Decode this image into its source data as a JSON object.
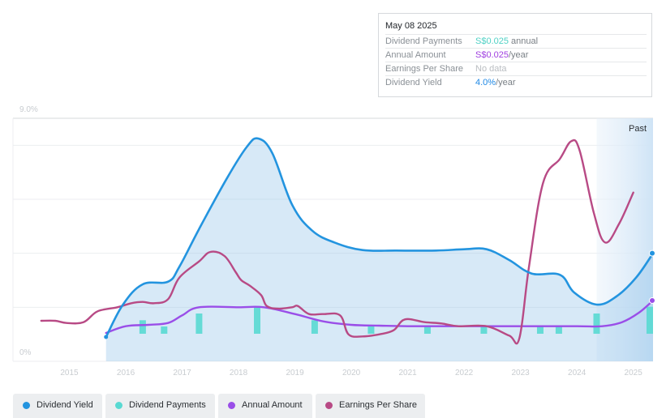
{
  "tooltip": {
    "date": "May 08 2025",
    "rows": [
      {
        "label": "Dividend Payments",
        "value": "S$0.025",
        "unit": "annual",
        "color": "#4fd1c5"
      },
      {
        "label": "Annual Amount",
        "value": "S$0.025",
        "unit": "/year",
        "color": "#a040e0"
      },
      {
        "label": "Earnings Per Share",
        "value": "No data",
        "unit": "",
        "color": "#b9bdc1"
      },
      {
        "label": "Dividend Yield",
        "value": "4.0%",
        "unit": "/year",
        "color": "#1e88e5"
      }
    ]
  },
  "legend": [
    {
      "label": "Dividend Yield",
      "color": "#2394df"
    },
    {
      "label": "Dividend Payments",
      "color": "#59d9d2"
    },
    {
      "label": "Annual Amount",
      "color": "#9a4ee8"
    },
    {
      "label": "Earnings Per Share",
      "color": "#b84a85"
    }
  ],
  "chart_data": {
    "type": "line",
    "y_axis": {
      "labels": [
        "9.0%",
        "0%"
      ],
      "min": 0,
      "max": 9.0,
      "unit": "%"
    },
    "x_ticks": [
      "2015",
      "2016",
      "2017",
      "2018",
      "2019",
      "2020",
      "2021",
      "2022",
      "2023",
      "2024",
      "2025"
    ],
    "x_range": [
      2014.0,
      2025.35
    ],
    "past_label": "Past",
    "past_start": 2024.35,
    "series": [
      {
        "name": "Dividend Yield",
        "color": "#2394df",
        "fill": true,
        "points": [
          [
            2015.65,
            0.9
          ],
          [
            2015.95,
            2.1
          ],
          [
            2016.3,
            2.85
          ],
          [
            2016.75,
            2.95
          ],
          [
            2016.95,
            3.5
          ],
          [
            2017.3,
            4.9
          ],
          [
            2017.8,
            6.8
          ],
          [
            2018.15,
            7.95
          ],
          [
            2018.35,
            8.25
          ],
          [
            2018.6,
            7.7
          ],
          [
            2018.95,
            5.8
          ],
          [
            2019.3,
            4.85
          ],
          [
            2019.7,
            4.4
          ],
          [
            2020.2,
            4.12
          ],
          [
            2020.8,
            4.1
          ],
          [
            2021.5,
            4.1
          ],
          [
            2022.0,
            4.15
          ],
          [
            2022.4,
            4.15
          ],
          [
            2022.8,
            3.75
          ],
          [
            2023.2,
            3.25
          ],
          [
            2023.7,
            3.2
          ],
          [
            2023.95,
            2.55
          ],
          [
            2024.35,
            2.1
          ],
          [
            2024.7,
            2.4
          ],
          [
            2025.05,
            3.1
          ],
          [
            2025.35,
            4.0
          ]
        ]
      },
      {
        "name": "Earnings Per Share",
        "color": "#b84a85",
        "fill": false,
        "points": [
          [
            2014.5,
            1.5
          ],
          [
            2014.75,
            1.5
          ],
          [
            2014.95,
            1.42
          ],
          [
            2015.25,
            1.45
          ],
          [
            2015.5,
            1.85
          ],
          [
            2015.85,
            2.0
          ],
          [
            2016.1,
            2.15
          ],
          [
            2016.3,
            2.2
          ],
          [
            2016.5,
            2.15
          ],
          [
            2016.75,
            2.3
          ],
          [
            2016.95,
            3.1
          ],
          [
            2017.3,
            3.7
          ],
          [
            2017.5,
            4.05
          ],
          [
            2017.75,
            3.9
          ],
          [
            2017.95,
            3.3
          ],
          [
            2018.05,
            3.0
          ],
          [
            2018.2,
            2.8
          ],
          [
            2018.4,
            2.45
          ],
          [
            2018.5,
            2.05
          ],
          [
            2018.7,
            1.95
          ],
          [
            2018.95,
            2.0
          ],
          [
            2019.05,
            2.05
          ],
          [
            2019.25,
            1.75
          ],
          [
            2019.5,
            1.75
          ],
          [
            2019.8,
            1.7
          ],
          [
            2019.95,
            1.0
          ],
          [
            2020.2,
            0.92
          ],
          [
            2020.5,
            1.0
          ],
          [
            2020.75,
            1.15
          ],
          [
            2020.95,
            1.55
          ],
          [
            2021.3,
            1.45
          ],
          [
            2021.6,
            1.4
          ],
          [
            2021.9,
            1.3
          ],
          [
            2022.4,
            1.3
          ],
          [
            2022.8,
            0.95
          ],
          [
            2022.98,
            0.85
          ],
          [
            2023.15,
            3.5
          ],
          [
            2023.4,
            6.6
          ],
          [
            2023.7,
            7.5
          ],
          [
            2023.9,
            8.15
          ],
          [
            2024.05,
            7.8
          ],
          [
            2024.3,
            5.5
          ],
          [
            2024.5,
            4.4
          ],
          [
            2024.75,
            5.1
          ],
          [
            2025.0,
            6.25
          ]
        ]
      },
      {
        "name": "Annual Amount",
        "color": "#9a4ee8",
        "fill": false,
        "points": [
          [
            2015.65,
            1.05
          ],
          [
            2016.0,
            1.3
          ],
          [
            2016.4,
            1.35
          ],
          [
            2016.75,
            1.42
          ],
          [
            2017.0,
            1.7
          ],
          [
            2017.3,
            2.0
          ],
          [
            2018.0,
            2.0
          ],
          [
            2018.45,
            2.0
          ],
          [
            2019.0,
            1.75
          ],
          [
            2019.5,
            1.48
          ],
          [
            2020.0,
            1.35
          ],
          [
            2020.5,
            1.32
          ],
          [
            2021.0,
            1.3
          ],
          [
            2022.0,
            1.3
          ],
          [
            2023.0,
            1.3
          ],
          [
            2024.0,
            1.3
          ],
          [
            2024.45,
            1.3
          ],
          [
            2024.8,
            1.45
          ],
          [
            2025.1,
            1.8
          ],
          [
            2025.35,
            2.25
          ]
        ]
      }
    ],
    "bars": {
      "name": "Dividend Payments",
      "color": "#59d9d2",
      "points": [
        [
          2016.3,
          0.5
        ],
        [
          2016.68,
          0.27
        ],
        [
          2017.3,
          0.75
        ],
        [
          2018.33,
          1.0
        ],
        [
          2019.35,
          0.5
        ],
        [
          2020.35,
          0.27
        ],
        [
          2021.35,
          0.27
        ],
        [
          2022.35,
          0.27
        ],
        [
          2023.35,
          0.27
        ],
        [
          2023.68,
          0.27
        ],
        [
          2024.35,
          0.75
        ],
        [
          2025.35,
          1.0
        ]
      ]
    }
  }
}
